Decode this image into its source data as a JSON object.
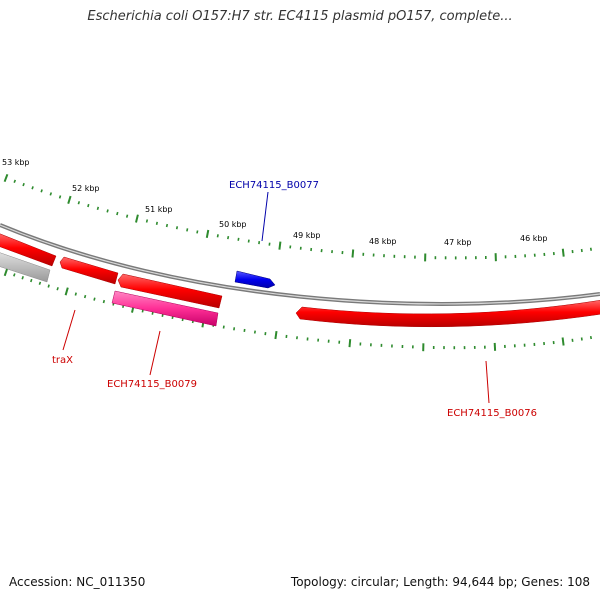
{
  "title": "Escherichia coli O157:H7 str. EC4115 plasmid pO157, complete...",
  "footer": {
    "accession": "Accession: NC_011350",
    "summary": "Topology: circular; Length: 94,644 bp; Genes: 108"
  },
  "colors": {
    "gene_red": "#ff0000",
    "gene_pink": "#ff3399",
    "gene_blue": "#0000ff",
    "gene_gray": "#bbbbbb",
    "backbone": "#888888",
    "tick_green": "#2e8b2e",
    "label_red": "#cc0000",
    "label_blue": "#0000aa"
  },
  "map": {
    "ticks": [
      {
        "label": "53 kbp"
      },
      {
        "label": "52 kbp"
      },
      {
        "label": "51 kbp"
      },
      {
        "label": "50 kbp"
      },
      {
        "label": "49 kbp"
      },
      {
        "label": "48 kbp"
      },
      {
        "label": "47 kbp"
      },
      {
        "label": "46 kbp"
      }
    ],
    "gene_labels": [
      {
        "name": "ECH74115_B0077",
        "color": "label_blue"
      },
      {
        "name": "traX",
        "color": "label_red"
      },
      {
        "name": "ECH74115_B0079",
        "color": "label_red"
      },
      {
        "name": "ECH74115_B0076",
        "color": "label_red"
      }
    ]
  }
}
